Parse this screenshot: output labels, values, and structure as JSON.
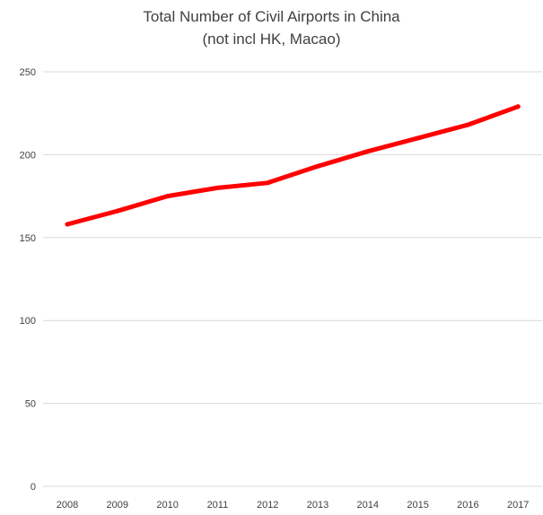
{
  "chart_data": {
    "type": "line",
    "title": "Total Number of Civil Airports in China",
    "subtitle": "(not incl HK, Macao)",
    "xlabel": "",
    "ylabel": "",
    "x": [
      "2008",
      "2009",
      "2010",
      "2011",
      "2012",
      "2013",
      "2014",
      "2015",
      "2016",
      "2017"
    ],
    "series": [
      {
        "values": [
          158,
          166,
          175,
          180,
          183,
          193,
          202,
          210,
          218,
          229
        ],
        "color": "#ff0000"
      }
    ],
    "ylim": [
      0,
      250
    ],
    "y_ticks": [
      "0",
      "50",
      "100",
      "150",
      "200",
      "250"
    ],
    "grid": "horizontal",
    "legend": "none"
  }
}
